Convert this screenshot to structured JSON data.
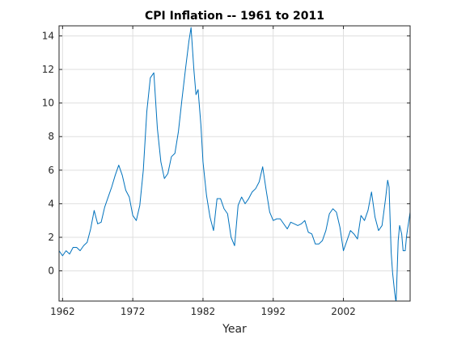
{
  "chart_data": {
    "type": "line",
    "title": "CPI Inflation -- 1961 to 2011",
    "xlabel": "Year",
    "ylabel": "",
    "xlim": [
      1961.5,
      2011.5
    ],
    "ylim": [
      -1.8,
      14.6
    ],
    "xticks": [
      1962,
      1972,
      1982,
      1992,
      2002
    ],
    "yticks": [
      0,
      2,
      4,
      6,
      8,
      10,
      12,
      14
    ],
    "grid": true,
    "series": [
      {
        "color": "#0072bd",
        "x": [
          1961.5,
          1962.0,
          1962.5,
          1963.0,
          1963.5,
          1964.0,
          1964.5,
          1965.0,
          1965.5,
          1966.0,
          1966.5,
          1967.0,
          1967.5,
          1968.0,
          1968.5,
          1969.0,
          1969.5,
          1970.0,
          1970.5,
          1971.0,
          1971.5,
          1972.0,
          1972.5,
          1973.0,
          1973.5,
          1974.0,
          1974.5,
          1975.0,
          1975.5,
          1976.0,
          1976.5,
          1977.0,
          1977.5,
          1978.0,
          1978.5,
          1979.0,
          1979.5,
          1980.0,
          1980.3,
          1980.7,
          1981.0,
          1981.3,
          1981.7,
          1982.0,
          1982.5,
          1983.0,
          1983.5,
          1984.0,
          1984.5,
          1985.0,
          1985.5,
          1986.0,
          1986.5,
          1987.0,
          1987.5,
          1988.0,
          1988.5,
          1989.0,
          1989.5,
          1990.0,
          1990.5,
          1991.0,
          1991.5,
          1992.0,
          1992.5,
          1993.0,
          1993.5,
          1994.0,
          1994.5,
          1995.0,
          1995.5,
          1996.0,
          1996.5,
          1997.0,
          1997.5,
          1998.0,
          1998.5,
          1999.0,
          1999.5,
          2000.0,
          2000.5,
          2001.0,
          2001.5,
          2002.0,
          2002.5,
          2003.0,
          2003.5,
          2004.0,
          2004.5,
          2005.0,
          2005.5,
          2006.0,
          2006.5,
          2007.0,
          2007.5,
          2008.0,
          2008.3,
          2008.5,
          2008.8,
          2009.0,
          2009.3,
          2009.5,
          2009.8,
          2010.0,
          2010.3,
          2010.5,
          2010.8,
          2011.0,
          2011.5
        ],
        "y": [
          1.2,
          0.9,
          1.2,
          1.0,
          1.4,
          1.4,
          1.2,
          1.5,
          1.7,
          2.5,
          3.6,
          2.8,
          2.9,
          3.8,
          4.4,
          5.0,
          5.7,
          6.3,
          5.7,
          4.8,
          4.4,
          3.3,
          3.0,
          3.9,
          6.0,
          9.5,
          11.5,
          11.8,
          8.5,
          6.5,
          5.5,
          5.8,
          6.8,
          7.0,
          8.3,
          10.2,
          12.0,
          13.7,
          14.5,
          12.0,
          10.5,
          10.8,
          8.7,
          6.5,
          4.5,
          3.2,
          2.4,
          4.3,
          4.3,
          3.7,
          3.4,
          2.0,
          1.5,
          3.9,
          4.4,
          4.0,
          4.3,
          4.7,
          4.9,
          5.3,
          6.2,
          4.8,
          3.5,
          3.0,
          3.1,
          3.1,
          2.8,
          2.5,
          2.9,
          2.8,
          2.7,
          2.8,
          3.0,
          2.3,
          2.2,
          1.6,
          1.6,
          1.8,
          2.4,
          3.4,
          3.7,
          3.5,
          2.6,
          1.2,
          1.8,
          2.4,
          2.2,
          1.9,
          3.3,
          3.0,
          3.6,
          4.7,
          3.2,
          2.4,
          2.7,
          4.3,
          5.4,
          5.0,
          1.1,
          -0.1,
          -1.3,
          -1.9,
          1.8,
          2.7,
          2.2,
          1.2,
          1.2,
          2.1,
          3.5
        ]
      }
    ]
  }
}
